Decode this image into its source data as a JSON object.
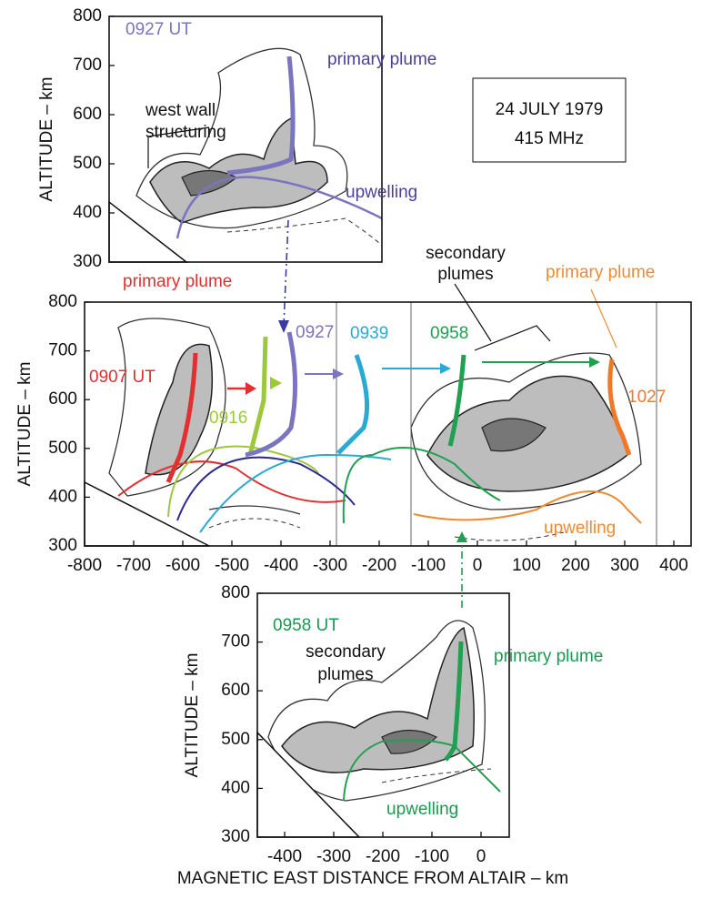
{
  "legend_box": [
    "24 JULY 1979",
    "415 MHz"
  ],
  "x_axis_label": "MAGNETIC EAST DISTANCE FROM ALTAIR – km",
  "panels": [
    {
      "y_label": "ALTITUDE – km",
      "y_ticks": [
        800,
        700,
        600,
        500,
        400,
        300
      ],
      "annotations": [
        "0927 UT",
        "primary plume",
        "west wall",
        "structuring",
        "upwelling"
      ]
    },
    {
      "y_label": "ALTITUDE – km",
      "y_ticks": [
        800,
        700,
        600,
        500,
        400,
        300
      ],
      "x_ticks": [
        -800,
        -700,
        -600,
        -500,
        -400,
        -300,
        -200,
        -100,
        0,
        100,
        200,
        300,
        400
      ],
      "annotations": [
        "primary plume",
        "secondary",
        "plumes",
        "primary plume",
        "0907 UT",
        "0916",
        "0927",
        "0939",
        "0958",
        "1027",
        "upwelling"
      ]
    },
    {
      "y_label": "ALTITUDE – km",
      "y_ticks": [
        800,
        700,
        600,
        500,
        400,
        300
      ],
      "x_ticks": [
        -400,
        -300,
        -200,
        -100,
        0
      ],
      "annotations": [
        "0958 UT",
        "secondary",
        "plumes",
        "primary plume",
        "upwelling"
      ]
    }
  ]
}
